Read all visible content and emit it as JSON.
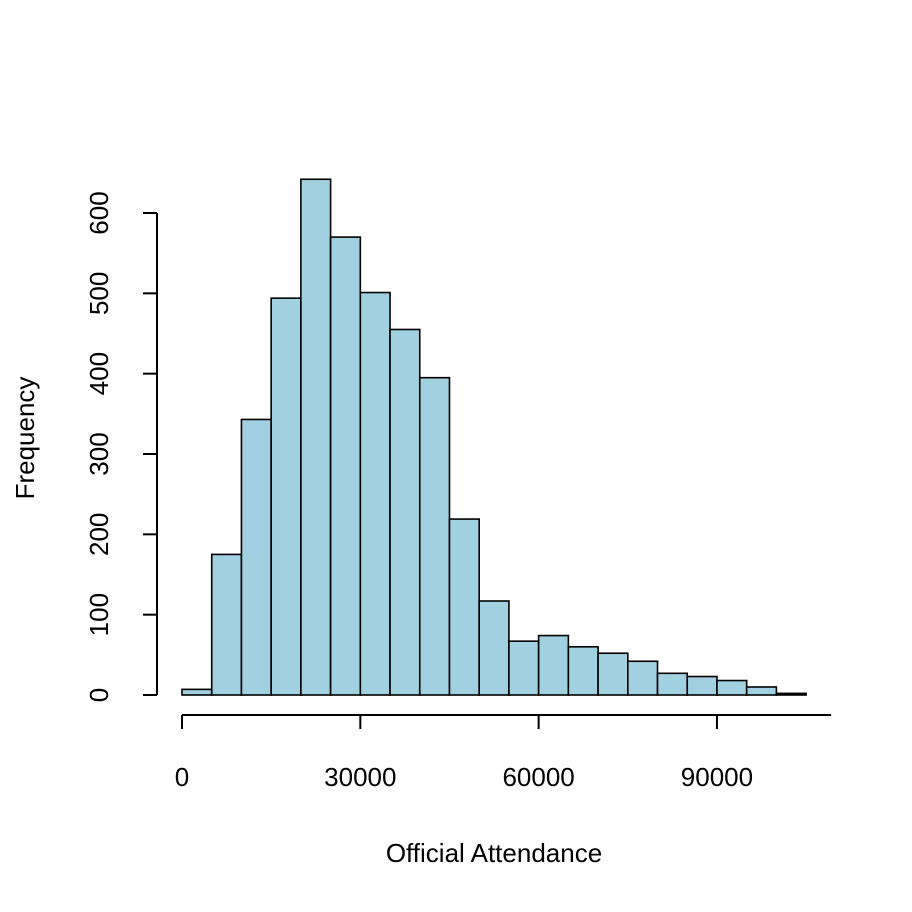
{
  "chart_data": {
    "type": "bar",
    "subtype": "histogram",
    "title": "",
    "xlabel": "Official Attendance",
    "ylabel": "Frequency",
    "bin_width": 5000,
    "bin_edges": [
      0,
      5000,
      10000,
      15000,
      20000,
      25000,
      30000,
      35000,
      40000,
      45000,
      50000,
      55000,
      60000,
      65000,
      70000,
      75000,
      80000,
      85000,
      90000,
      95000,
      100000,
      105000
    ],
    "values": [
      7,
      175,
      343,
      494,
      642,
      570,
      501,
      455,
      395,
      219,
      117,
      67,
      74,
      60,
      52,
      42,
      27,
      23,
      18,
      10,
      2
    ],
    "xlim": [
      0,
      105000
    ],
    "ylim": [
      0,
      600
    ],
    "x_ticks": [
      0,
      30000,
      60000,
      90000
    ],
    "y_ticks": [
      0,
      100,
      200,
      300,
      400,
      500,
      600
    ],
    "x_tick_labels": [
      "0",
      "30000",
      "60000",
      "90000"
    ],
    "y_tick_labels": [
      "0",
      "100",
      "200",
      "300",
      "400",
      "500",
      "600"
    ],
    "bar_color": "#a1d0e1",
    "border_color": "#000000",
    "grid": false,
    "legend": "none"
  }
}
